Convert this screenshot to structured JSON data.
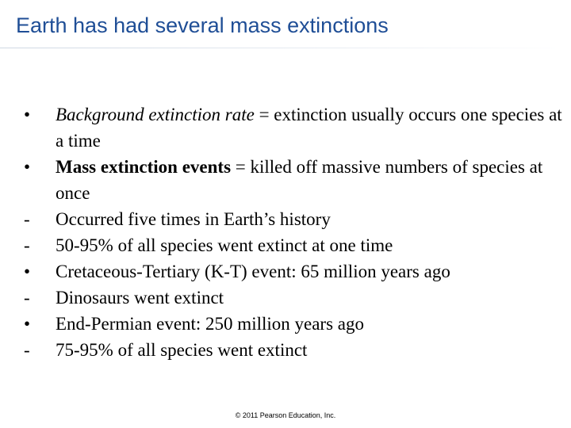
{
  "slide": {
    "title": "Earth has had several mass extinctions",
    "bullets": [
      {
        "marker": "•",
        "term": "Background extinction rate",
        "term_style": "italic",
        "text": " = extinction usually occurs one species at a time"
      },
      {
        "marker": "•",
        "term": "Mass extinction events",
        "term_style": "bold",
        "text": " = killed off massive numbers of species at once"
      },
      {
        "marker": "-",
        "term": "",
        "term_style": "",
        "text": "Occurred five times in Earth’s history"
      },
      {
        "marker": "-",
        "term": "",
        "term_style": "",
        "text": "50-95% of all species went extinct at one time"
      },
      {
        "marker": "•",
        "term": "",
        "term_style": "",
        "text": "Cretaceous-Tertiary (K-T) event: 65 million years ago"
      },
      {
        "marker": "-",
        "term": "",
        "term_style": "",
        "text": "Dinosaurs went extinct"
      },
      {
        "marker": "•",
        "term": "",
        "term_style": "",
        "text": "End-Permian event: 250 million years ago"
      },
      {
        "marker": "-",
        "term": "",
        "term_style": "",
        "text": "75-95% of all species went extinct"
      }
    ],
    "footer": "© 2011 Pearson Education, Inc."
  },
  "colors": {
    "title": "#1f4e96",
    "body_text": "#000000",
    "background": "#ffffff"
  }
}
